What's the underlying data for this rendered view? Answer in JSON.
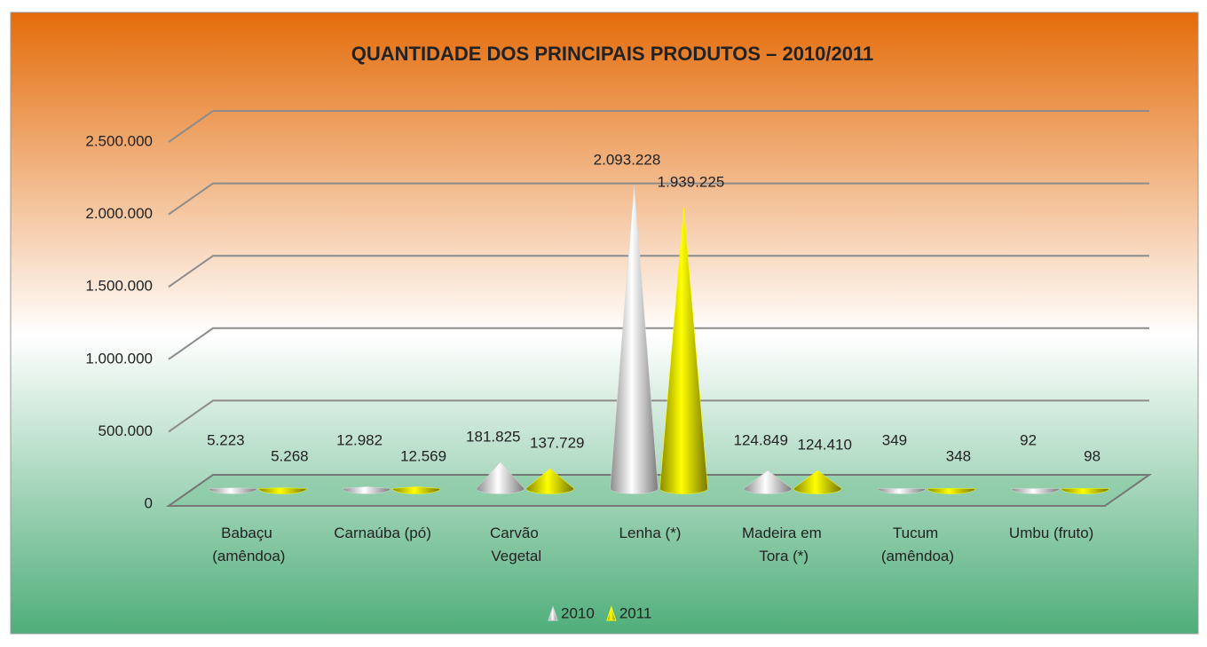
{
  "chart_data": {
    "type": "cone3d",
    "title": "QUANTIDADE DOS PRINCIPAIS PRODUTOS – 2010/2011",
    "categories": [
      "Babaçu (amêndoa)",
      "Carnaúba (pó)",
      "Carvão Vegetal",
      "Lenha (*)",
      "Madeira em Tora (*)",
      "Tucum (amêndoa)",
      "Umbu (fruto)"
    ],
    "series": [
      {
        "name": "2010",
        "color": "#d9d9d9",
        "values": [
          5223,
          12982,
          181825,
          2093228,
          124849,
          349,
          92
        ],
        "value_labels": [
          "5.223",
          "12.982",
          "181.825",
          "2.093.228",
          "124.849",
          "349",
          "92"
        ]
      },
      {
        "name": "2011",
        "color": "#ffff00",
        "values": [
          5268,
          12569,
          137729,
          1939225,
          124410,
          348,
          98
        ],
        "value_labels": [
          "5.268",
          "12.569",
          "137.729",
          "1.939.225",
          "124.410",
          "348",
          "98"
        ]
      }
    ],
    "ylim": [
      0,
      2500000
    ],
    "yticks": [
      0,
      {
        "value": 500000,
        "label": "500.000"
      },
      {
        "value": 1000000,
        "label": "1.000.000"
      },
      {
        "value": 1500000,
        "label": "1.500.000"
      },
      {
        "value": 2000000,
        "label": "2.000.000"
      },
      {
        "value": 2500000,
        "label": "2.500.000"
      }
    ],
    "grid": true,
    "legend": "bottom"
  }
}
